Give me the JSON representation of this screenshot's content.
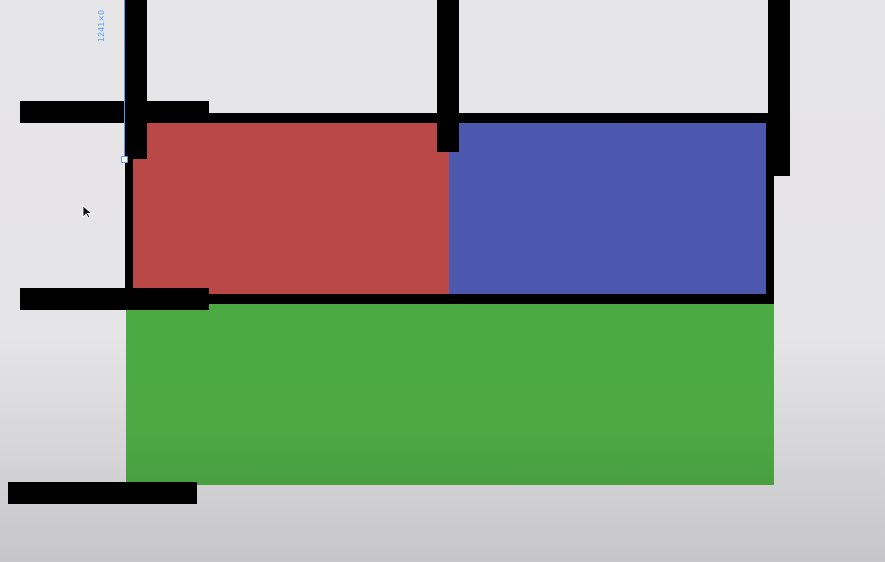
{
  "guide": {
    "label": "1241×0",
    "color": "#5b9cf0"
  },
  "panels": {
    "red": {
      "color": "#b94745"
    },
    "blue": {
      "color": "#4c58ae"
    },
    "green": {
      "color": "#4caa45"
    }
  },
  "icons": {
    "cursor": "mouse-pointer-icon"
  }
}
